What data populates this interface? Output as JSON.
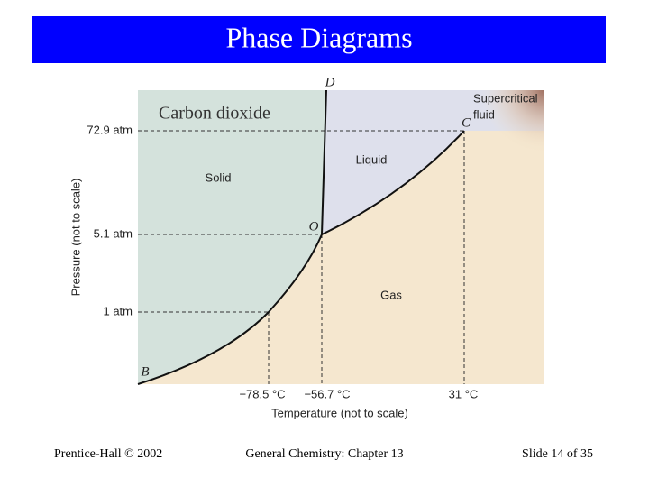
{
  "header": {
    "title": "Phase Diagrams"
  },
  "diagram": {
    "subtitle": "Carbon dioxide",
    "regions": {
      "solid": "Solid",
      "liquid": "Liquid",
      "gas": "Gas",
      "supercritical": [
        "Supercritical",
        "fluid"
      ]
    },
    "points": {
      "b": "B",
      "o": "O",
      "c": "C",
      "d": "D"
    },
    "y_labels": [
      "72.9 atm",
      "5.1 atm",
      "1 atm"
    ],
    "x_labels": [
      "−78.5 °C",
      "−56.7 °C",
      "31 °C"
    ],
    "x_axis_title": "Temperature (not to scale)",
    "y_axis_title": "Pressure (not to scale)"
  },
  "footer": {
    "left": "Prentice-Hall © 2002",
    "center": "General Chemistry: Chapter 13",
    "right": "Slide 14 of 35"
  }
}
